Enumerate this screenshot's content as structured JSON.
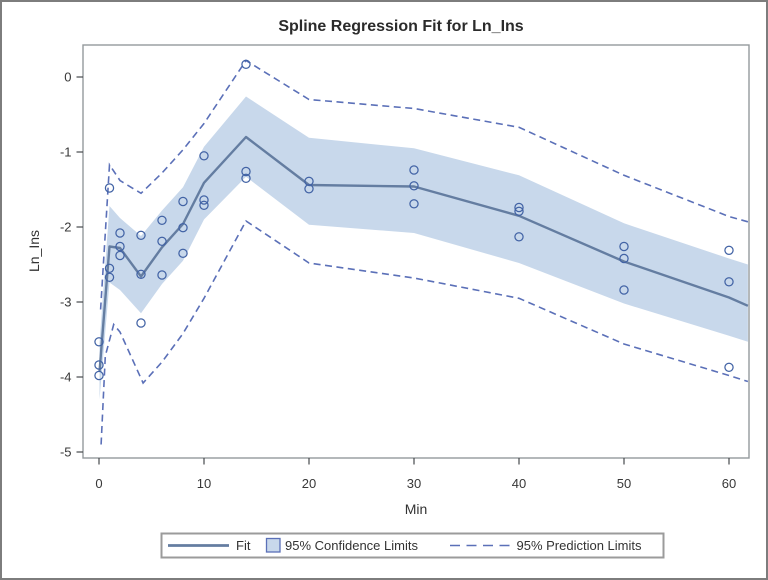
{
  "figure": {
    "title": "Spline Regression Fit for Ln_Ins",
    "x_axis": {
      "label": "Min"
    },
    "y_axis": {
      "label": "Ln_Ins"
    },
    "legend": {
      "fit_label": "Fit",
      "ci_label": "95% Confidence Limits",
      "pl_label": "95% Prediction Limits"
    }
  },
  "colors": {
    "fit_line": "#647da1",
    "band_fill": "#c8d8eb",
    "band_edge": "#5b70b8",
    "prediction_dash": "#5b70b8",
    "point_stroke": "#4263a5",
    "frame": "#95999c",
    "tick": "#46494c",
    "legend_border": "#9b9b9b"
  },
  "chart_data": {
    "type": "line",
    "title": "Spline Regression Fit for Ln_Ins",
    "xlabel": "Min",
    "ylabel": "Ln_Ins",
    "xlim": [
      -1.5,
      61.9
    ],
    "ylim": [
      -5.08,
      0.43
    ],
    "x_ticks": [
      0,
      10,
      20,
      30,
      40,
      50,
      60
    ],
    "y_ticks": [
      0,
      -1,
      -2,
      -3,
      -4,
      -5
    ],
    "grid": false,
    "legend_position": "bottom",
    "series": [
      {
        "name": "Fit",
        "role": "fit",
        "points": [
          [
            0.05,
            -3.93
          ],
          [
            1,
            -2.26
          ],
          [
            2,
            -2.28
          ],
          [
            4,
            -2.66
          ],
          [
            6,
            -2.27
          ],
          [
            8,
            -1.96
          ],
          [
            10,
            -1.41
          ],
          [
            14,
            -0.8
          ],
          [
            20,
            -1.44
          ],
          [
            30,
            -1.46
          ],
          [
            40,
            -1.85
          ],
          [
            50,
            -2.46
          ],
          [
            60,
            -2.94
          ],
          [
            61.8,
            -3.05
          ]
        ]
      },
      {
        "name": "95% Confidence Limits (upper)",
        "role": "ci-upper",
        "points": [
          [
            0.05,
            -3.55
          ],
          [
            1,
            -1.72
          ],
          [
            2,
            -1.88
          ],
          [
            4,
            -2.12
          ],
          [
            6,
            -1.78
          ],
          [
            8,
            -1.47
          ],
          [
            10,
            -0.93
          ],
          [
            14,
            -0.26
          ],
          [
            20,
            -0.81
          ],
          [
            30,
            -0.95
          ],
          [
            40,
            -1.31
          ],
          [
            50,
            -1.95
          ],
          [
            60,
            -2.42
          ],
          [
            61.8,
            -2.5
          ]
        ]
      },
      {
        "name": "95% Confidence Limits (lower)",
        "role": "ci-lower",
        "points": [
          [
            0.05,
            -4.3
          ],
          [
            1,
            -2.74
          ],
          [
            2,
            -2.84
          ],
          [
            4,
            -3.15
          ],
          [
            6,
            -2.76
          ],
          [
            8,
            -2.45
          ],
          [
            10,
            -1.9
          ],
          [
            14,
            -1.33
          ],
          [
            20,
            -1.97
          ],
          [
            30,
            -2.08
          ],
          [
            40,
            -2.48
          ],
          [
            50,
            -3.02
          ],
          [
            60,
            -3.45
          ],
          [
            61.8,
            -3.53
          ]
        ]
      },
      {
        "name": "95% Prediction Limits (upper)",
        "role": "pl-upper",
        "points": [
          [
            0.15,
            -3.1
          ],
          [
            1,
            -1.17
          ],
          [
            2,
            -1.38
          ],
          [
            4,
            -1.55
          ],
          [
            6,
            -1.28
          ],
          [
            8,
            -0.97
          ],
          [
            10,
            -0.62
          ],
          [
            14,
            0.22
          ],
          [
            20,
            -0.3
          ],
          [
            30,
            -0.42
          ],
          [
            40,
            -0.67
          ],
          [
            50,
            -1.31
          ],
          [
            60,
            -1.86
          ],
          [
            61.8,
            -1.93
          ]
        ]
      },
      {
        "name": "95% Prediction Limits (lower)",
        "role": "pl-lower",
        "points": [
          [
            0.2,
            -4.9
          ],
          [
            0.6,
            -3.72
          ],
          [
            1.4,
            -3.3
          ],
          [
            2,
            -3.4
          ],
          [
            4.2,
            -4.08
          ],
          [
            6,
            -3.8
          ],
          [
            8,
            -3.42
          ],
          [
            10,
            -2.95
          ],
          [
            14,
            -1.92
          ],
          [
            20,
            -2.48
          ],
          [
            30,
            -2.68
          ],
          [
            40,
            -2.95
          ],
          [
            50,
            -3.56
          ],
          [
            60,
            -3.98
          ],
          [
            61.8,
            -4.06
          ]
        ]
      },
      {
        "name": "Observations",
        "role": "observations",
        "points": [
          [
            0,
            -3.53
          ],
          [
            0,
            -3.84
          ],
          [
            0,
            -3.98
          ],
          [
            1,
            -1.48
          ],
          [
            1,
            -2.55
          ],
          [
            1,
            -2.67
          ],
          [
            2,
            -2.08
          ],
          [
            2,
            -2.26
          ],
          [
            2,
            -2.38
          ],
          [
            4,
            -2.11
          ],
          [
            4,
            -2.63
          ],
          [
            4,
            -3.28
          ],
          [
            6,
            -1.91
          ],
          [
            6,
            -2.19
          ],
          [
            6,
            -2.64
          ],
          [
            8,
            -1.66
          ],
          [
            8,
            -2.01
          ],
          [
            8,
            -2.35
          ],
          [
            10,
            -1.05
          ],
          [
            10,
            -1.64
          ],
          [
            10,
            -1.71
          ],
          [
            14,
            0.17
          ],
          [
            14,
            -1.26
          ],
          [
            14,
            -1.35
          ],
          [
            20,
            -1.39
          ],
          [
            20,
            -1.49
          ],
          [
            30,
            -1.24
          ],
          [
            30,
            -1.45
          ],
          [
            30,
            -1.69
          ],
          [
            40,
            -1.74
          ],
          [
            40,
            -1.79
          ],
          [
            40,
            -2.13
          ],
          [
            50,
            -2.26
          ],
          [
            50,
            -2.42
          ],
          [
            50,
            -2.84
          ],
          [
            60,
            -2.31
          ],
          [
            60,
            -2.73
          ],
          [
            60,
            -3.87
          ]
        ]
      }
    ]
  }
}
